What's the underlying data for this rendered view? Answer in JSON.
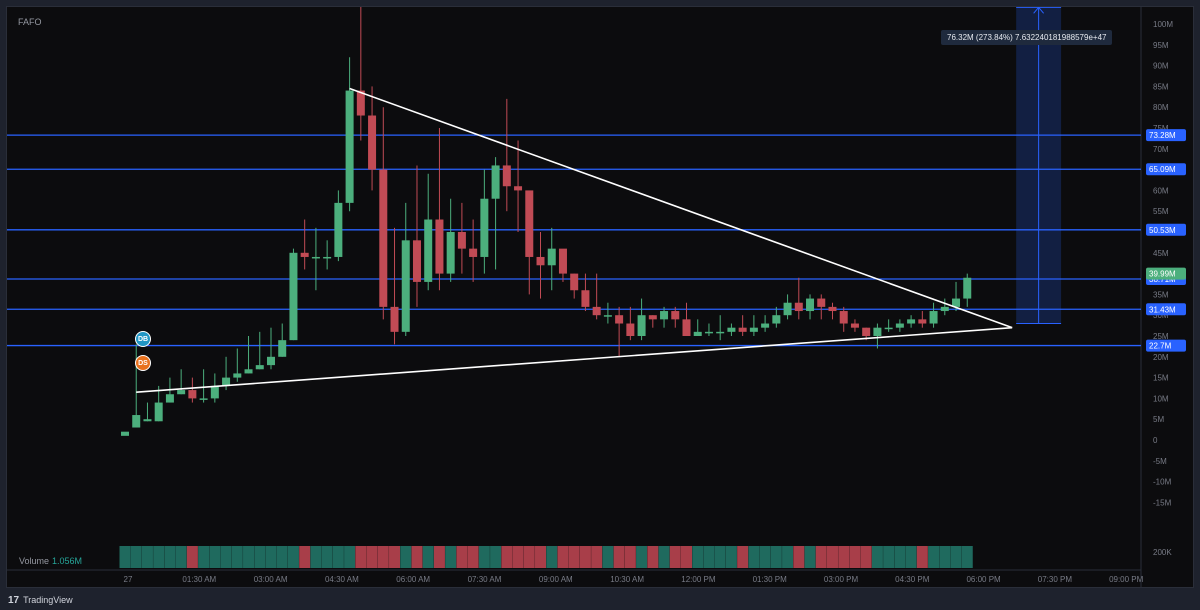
{
  "symbol": "FAFO",
  "volume": {
    "label": "Volume",
    "value": "1.056M",
    "axis_label": "200K"
  },
  "badges": {
    "db": "DB",
    "ds": "DS"
  },
  "measure_label": "76.32M (273.84%) 7.632240181988579e+47",
  "footer": {
    "logo": "17",
    "brand": "TradingView"
  },
  "colors": {
    "up": "#4caf7d",
    "down": "#c14b55",
    "level_line": "#2962ff",
    "trend_line": "#ffffff",
    "vol_up": "#1f6a5e",
    "vol_down": "#a83e49"
  },
  "chart_data": {
    "type": "candlestick",
    "title": "",
    "xlabel": "",
    "ylabel": "",
    "ylim": [
      -15,
      110
    ],
    "y_ticks": [
      "110M",
      "105M",
      "100M",
      "95M",
      "90M",
      "85M",
      "80M",
      "75M",
      "70M",
      "65M",
      "60M",
      "55M",
      "50M",
      "45M",
      "40M",
      "35M",
      "30M",
      "25M",
      "20M",
      "15M",
      "10M",
      "5M",
      "0",
      "-5M",
      "-10M",
      "-15M"
    ],
    "x_ticks": [
      "27",
      "01:30 AM",
      "03:00 AM",
      "04:30 AM",
      "06:00 AM",
      "07:30 AM",
      "09:00 AM",
      "10:30 AM",
      "12:00 PM",
      "01:30 PM",
      "03:00 PM",
      "04:30 PM",
      "06:00 PM",
      "07:30 PM",
      "09:00 PM"
    ],
    "candles_ohlc_millions": [
      [
        1,
        2,
        1,
        1
      ],
      [
        3,
        6,
        23,
        3
      ],
      [
        4.5,
        5,
        9,
        4.5
      ],
      [
        4.5,
        9,
        13,
        4.5
      ],
      [
        9,
        11,
        15,
        9
      ],
      [
        11,
        12,
        17,
        11
      ],
      [
        12,
        10,
        15,
        9
      ],
      [
        10,
        10,
        17,
        9
      ],
      [
        10,
        13,
        16,
        9
      ],
      [
        13,
        15,
        20,
        12
      ],
      [
        15,
        16,
        22,
        14
      ],
      [
        16,
        17,
        25,
        16
      ],
      [
        17,
        18,
        26,
        17
      ],
      [
        18,
        20,
        27,
        17
      ],
      [
        20,
        24,
        28,
        20
      ],
      [
        24,
        45,
        46,
        24
      ],
      [
        45,
        44,
        53,
        41
      ],
      [
        44,
        44,
        51,
        36
      ],
      [
        44,
        44,
        48,
        41
      ],
      [
        44,
        57,
        60,
        43
      ],
      [
        57,
        84,
        92,
        55
      ],
      [
        84,
        78,
        105,
        72
      ],
      [
        78,
        65,
        85,
        60
      ],
      [
        65,
        32,
        80,
        29
      ],
      [
        32,
        26,
        51,
        23
      ],
      [
        26,
        48,
        57,
        25
      ],
      [
        48,
        38,
        66,
        32
      ],
      [
        38,
        53,
        64,
        36
      ],
      [
        53,
        40,
        75,
        36
      ],
      [
        40,
        50,
        58,
        38
      ],
      [
        50,
        46,
        57,
        40
      ],
      [
        46,
        44,
        53,
        38
      ],
      [
        44,
        58,
        65,
        40
      ],
      [
        58,
        66,
        68,
        41
      ],
      [
        66,
        61,
        82,
        55
      ],
      [
        61,
        60,
        72,
        50
      ],
      [
        60,
        44,
        57,
        35
      ],
      [
        44,
        42,
        50,
        34
      ],
      [
        42,
        46,
        51,
        36
      ],
      [
        46,
        40,
        45,
        38
      ],
      [
        40,
        36,
        40,
        34
      ],
      [
        36,
        32,
        40,
        31
      ],
      [
        32,
        30,
        40,
        29
      ],
      [
        30,
        30,
        33,
        28
      ],
      [
        30,
        28,
        32,
        20
      ],
      [
        28,
        25,
        32,
        24
      ],
      [
        25,
        30,
        34,
        24
      ],
      [
        30,
        29,
        30,
        27
      ],
      [
        29,
        31,
        32,
        27
      ],
      [
        31,
        29,
        32,
        27
      ],
      [
        29,
        25,
        33,
        25
      ],
      [
        25,
        26,
        29,
        25
      ],
      [
        26,
        26,
        28,
        25
      ],
      [
        26,
        26,
        30,
        24
      ],
      [
        26,
        27,
        28,
        25
      ],
      [
        27,
        26,
        30,
        25
      ],
      [
        26,
        27,
        30,
        25
      ],
      [
        27,
        28,
        30,
        26
      ],
      [
        28,
        30,
        32,
        27
      ],
      [
        30,
        33,
        35,
        29
      ],
      [
        33,
        31,
        39,
        29
      ],
      [
        31,
        34,
        35,
        29
      ],
      [
        34,
        32,
        35,
        29
      ],
      [
        32,
        31,
        33,
        29
      ],
      [
        31,
        28,
        32,
        26
      ],
      [
        28,
        27,
        29,
        26
      ],
      [
        27,
        25,
        27,
        24
      ],
      [
        25,
        27,
        28,
        22
      ],
      [
        27,
        27,
        29,
        26
      ],
      [
        27,
        28,
        29,
        26
      ],
      [
        28,
        29,
        30,
        27
      ],
      [
        29,
        28,
        31,
        27
      ],
      [
        28,
        31,
        33,
        27
      ],
      [
        31,
        32,
        34,
        30
      ],
      [
        32,
        34,
        38,
        31
      ],
      [
        34,
        39,
        40,
        32
      ]
    ],
    "volume_series": "up/down bars per candle",
    "levels": [
      {
        "value": 73.28,
        "label": "73.28M"
      },
      {
        "value": 65.09,
        "label": "65.09M"
      },
      {
        "value": 50.53,
        "label": "50.53M"
      },
      {
        "value": 38.71,
        "label": "38.71M"
      },
      {
        "value": 31.43,
        "label": "31.43M"
      },
      {
        "value": 22.7,
        "label": "22.7M"
      }
    ],
    "last_price_label": "39.99M",
    "hidden_tick": "35M",
    "trend_lines": [
      {
        "from_index": 20,
        "from_value": 84.5,
        "to_index": 79,
        "to_value": 27
      },
      {
        "from_index": 1,
        "from_value": 11.5,
        "to_index": 79,
        "to_value": 27
      }
    ],
    "measure": {
      "from_value": 28,
      "to_value": 104,
      "from_index": 79,
      "to_index": 83
    }
  }
}
